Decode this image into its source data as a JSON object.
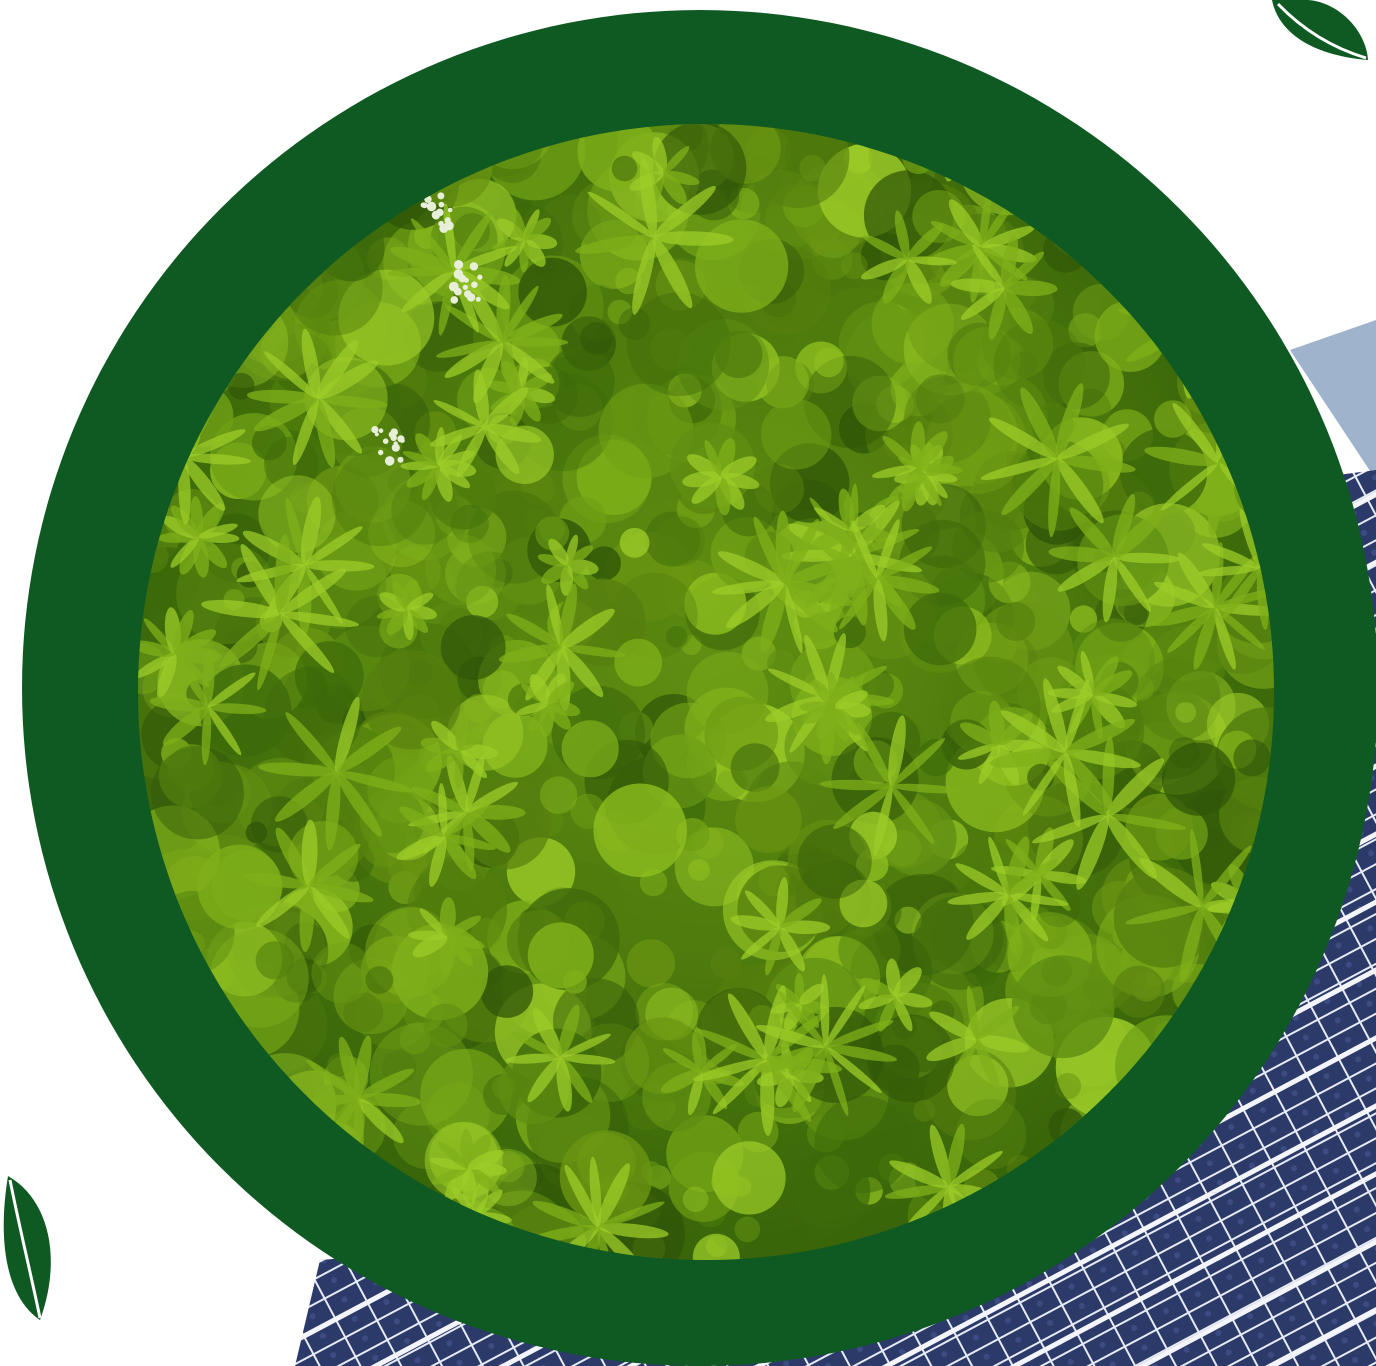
{
  "scene": {
    "subject": "forest-canopy-in-circle",
    "icons": [
      "leaf-icon",
      "leaf-icon"
    ]
  },
  "colors": {
    "ring": "#0f5a22",
    "canopy_light": "#8fbf1f",
    "canopy_mid": "#5f8f12",
    "canopy_dark": "#2f5608",
    "leaf": "#0f5a22",
    "solar_panel": "#2c3a6a",
    "solar_grid": "#e6ebf5",
    "sky": "#9fb4cc"
  }
}
